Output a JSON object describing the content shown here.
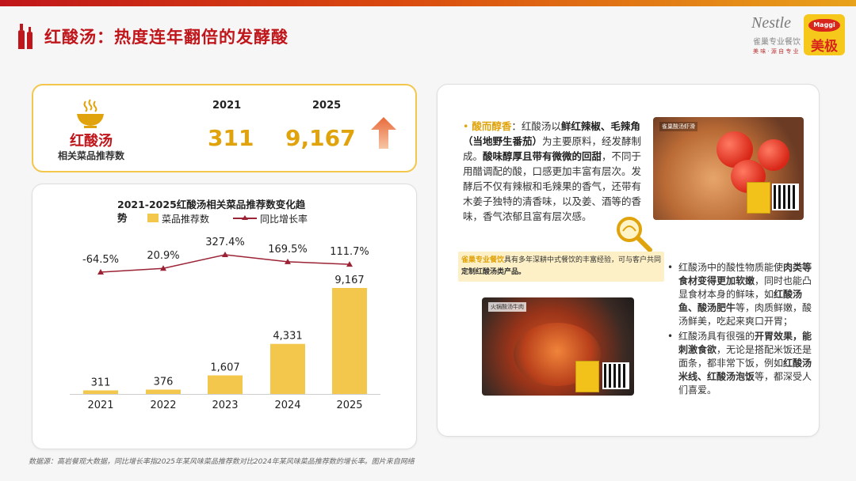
{
  "header": {
    "title": "红酸汤：热度连年翻倍的发酵酸",
    "logo_nestle": "Nestle",
    "logo_nestle_sub": "雀巢专业餐饮",
    "logo_nestle_tagline": "美 味 · 源 自 专 业",
    "logo_maggi_top": "Maggi",
    "logo_maggi_cn": "美极"
  },
  "summary": {
    "dish": "红酸汤",
    "metric": "相关菜品推荐数",
    "year_a": "2021",
    "year_b": "2025",
    "value_a": "311",
    "value_b": "9,167"
  },
  "chart_data": {
    "type": "bar",
    "title_line1": "2021-2025红酸汤相关菜品推荐数变化趋",
    "title_line2": "势",
    "categories": [
      "2021",
      "2022",
      "2023",
      "2024",
      "2025"
    ],
    "series": [
      {
        "name": "菜品推荐数",
        "values": [
          311,
          376,
          1607,
          4331,
          9167
        ],
        "labels": [
          "311",
          "376",
          "1,607",
          "4,331",
          "9,167"
        ]
      },
      {
        "name": "同比增长率",
        "values": [
          -64.5,
          20.9,
          327.4,
          169.5,
          111.7
        ],
        "labels": [
          "-64.5%",
          "20.9%",
          "327.4%",
          "169.5%",
          "111.7%"
        ]
      }
    ],
    "ylim": [
      0,
      9167
    ],
    "grid": false,
    "legend": "top",
    "colors": {
      "bar": "#f3c64c",
      "line": "#9b2335"
    }
  },
  "source": "数据源：高岩餐观大数据，同比增长率指2025年某风味菜品推荐数对比2024年某风味菜品推荐数的增长率。图片来自网络",
  "right": {
    "photo1_caption": "雀巢酸汤虾滑",
    "photo2_caption": "火锅酸汤牛肉",
    "desc_lead": "酸而醇香",
    "desc_parts": [
      "：红酸汤以",
      "鲜红辣椒、毛辣角（当地野生番茄）",
      "为主要原料，经发酵制成。",
      "酸味醇厚且带有微微的回甜",
      "，不同于用醋调配的酸，口感更加丰富有层次。发酵后不仅有辣椒和毛辣果的香气，还带有木姜子独特的清香味，以及姜、酒等的香味，香气浓郁且富有层次感。"
    ],
    "banner_hl": "雀巢专业餐饮",
    "banner_text1": "具有多年深耕中式餐饮的丰富经验，可与客户共同",
    "banner_text2": "定制红酸汤类产品。",
    "bullet_dot": "•",
    "bullet1_parts": [
      "红酸汤中的酸性物质能使",
      "肉类等食材变得更加软嫩",
      "，同时也能凸显食材本身的鲜味，如",
      "红酸汤鱼、酸汤肥牛",
      "等，肉质鲜嫩，酸汤鲜美，吃起来爽口开胃；"
    ],
    "bullet2_parts": [
      "红酸汤具有很强的",
      "开胃效果，能刺激食欲",
      "，无论是搭配米饭还是面条，都非常下饭，例如",
      "红酸汤米线、红酸汤泡饭",
      "等，都深受人们喜爱。"
    ]
  }
}
